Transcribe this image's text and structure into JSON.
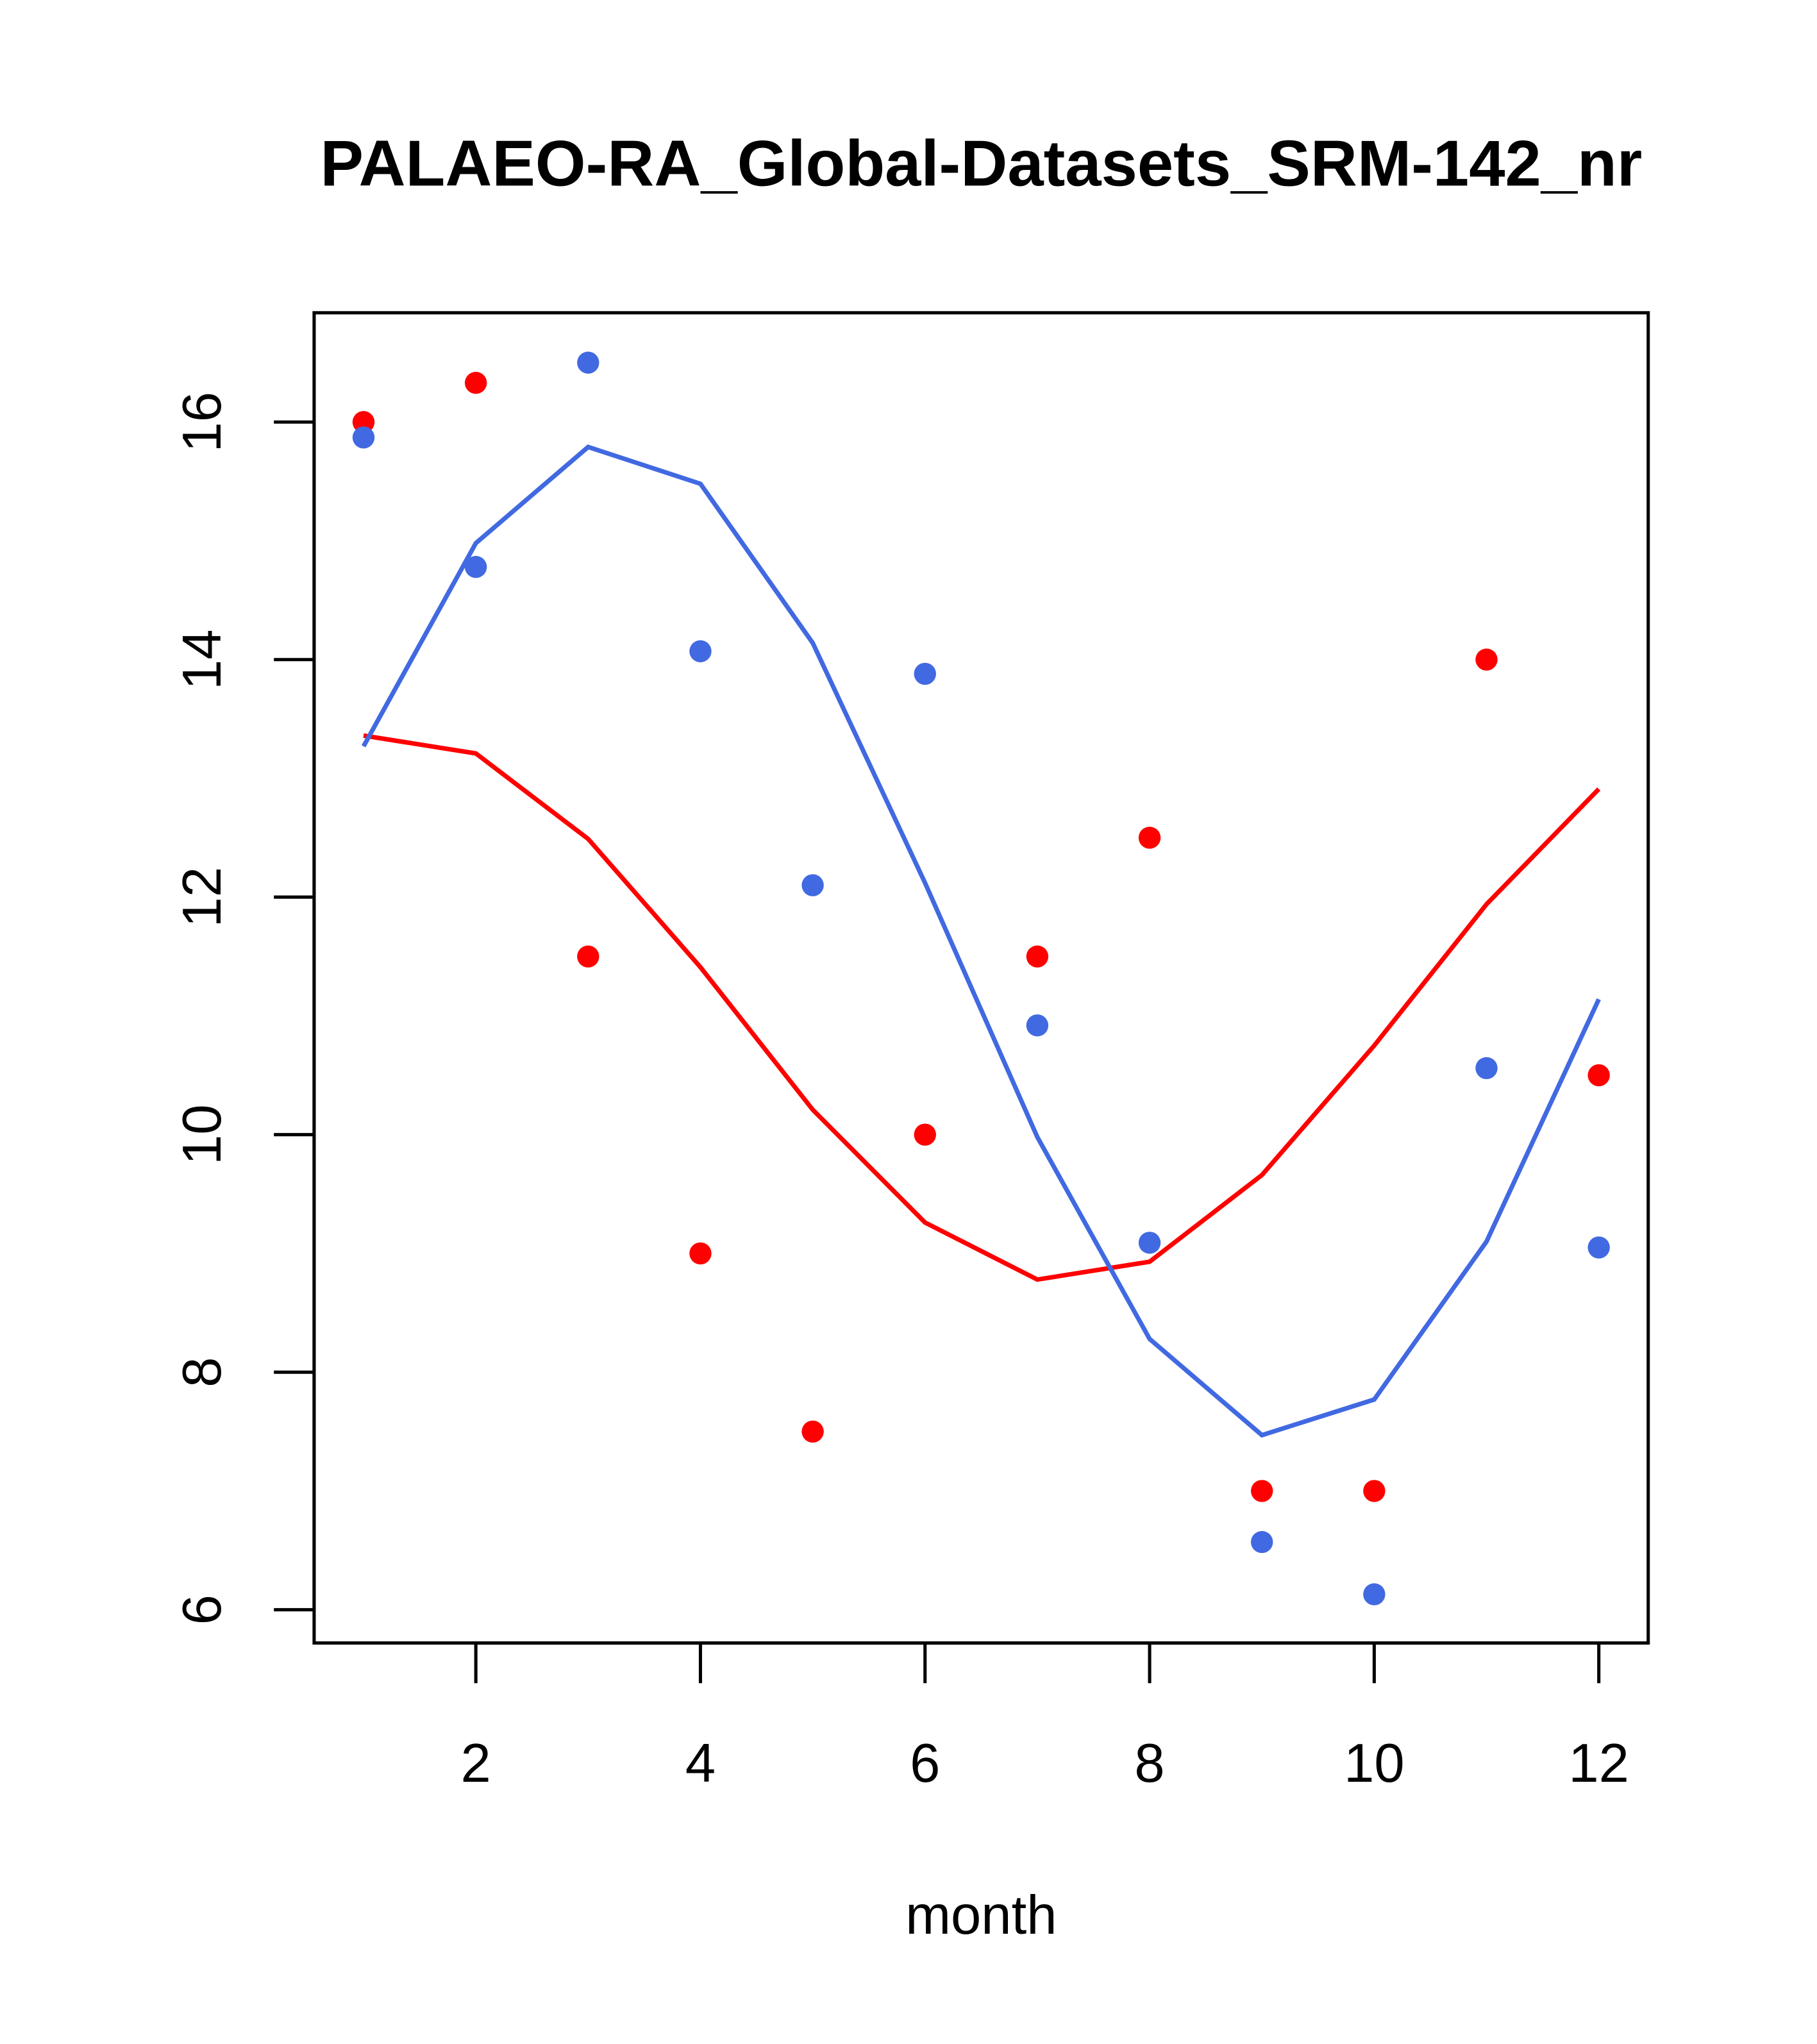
{
  "chart_data": {
    "type": "scatter",
    "title": "PALAEO-RA_Global-Datasets_SRM-142_nr",
    "xlabel": "month",
    "ylabel": "",
    "xlim": [
      0.56,
      12.44
    ],
    "ylim": [
      5.72,
      16.92
    ],
    "xticks": [
      2,
      4,
      6,
      8,
      10,
      12
    ],
    "yticks": [
      6,
      8,
      10,
      12,
      14,
      16
    ],
    "grid": false,
    "x": [
      1,
      2,
      3,
      4,
      5,
      6,
      7,
      8,
      9,
      10,
      11,
      12
    ],
    "series": [
      {
        "name": "red points",
        "kind": "points",
        "color": "#ff0000",
        "values": [
          16.0,
          16.33,
          11.5,
          9.0,
          7.5,
          10.0,
          11.5,
          12.5,
          7.0,
          7.0,
          14.0,
          10.5
        ]
      },
      {
        "name": "blue points",
        "kind": "points",
        "color": "#4169e1",
        "values": [
          15.87,
          14.78,
          16.5,
          14.07,
          12.1,
          13.88,
          10.92,
          9.09,
          6.57,
          6.13,
          10.56,
          9.05
        ]
      },
      {
        "name": "red line",
        "kind": "line",
        "color": "#ff0000",
        "values": [
          13.36,
          13.21,
          12.49,
          11.41,
          10.21,
          9.26,
          8.78,
          8.93,
          9.66,
          10.75,
          11.94,
          12.91
        ]
      },
      {
        "name": "blue line",
        "kind": "line",
        "color": "#4169e1",
        "values": [
          13.27,
          14.98,
          15.79,
          15.48,
          14.14,
          12.12,
          9.98,
          8.28,
          7.47,
          7.77,
          9.1,
          11.14
        ]
      }
    ]
  }
}
